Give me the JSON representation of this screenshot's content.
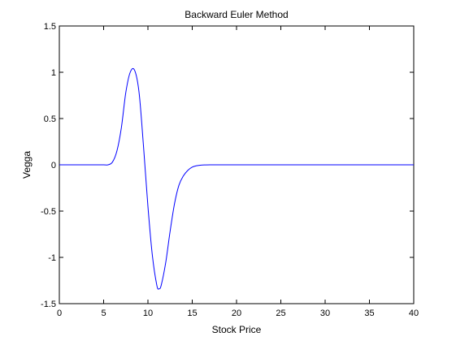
{
  "chart_data": {
    "type": "line",
    "title": "Backward Euler Method",
    "xlabel": "Stock Price",
    "ylabel": "Vegga",
    "xlim": [
      0,
      40
    ],
    "ylim": [
      -1.5,
      1.5
    ],
    "xticks": [
      0,
      5,
      10,
      15,
      20,
      25,
      30,
      35,
      40
    ],
    "yticks": [
      -1.5,
      -1,
      -0.5,
      0,
      0.5,
      1,
      1.5
    ],
    "xtick_labels": [
      "0",
      "5",
      "10",
      "15",
      "20",
      "25",
      "30",
      "35",
      "40"
    ],
    "ytick_labels": [
      "-1.5",
      "-1",
      "-0.5",
      "0",
      "0.5",
      "1",
      "1.5"
    ],
    "grid": false,
    "legend": "none",
    "series": [
      {
        "color": "#0000ff",
        "x": [
          0,
          1,
          2,
          3,
          4,
          5,
          5.5,
          6,
          6.5,
          7,
          7.5,
          8,
          8.5,
          9,
          9.5,
          10,
          10.5,
          11,
          11.25,
          11.5,
          12,
          12.5,
          13,
          13.5,
          14,
          14.5,
          15,
          15.5,
          16,
          16.5,
          17,
          18,
          20,
          25,
          30,
          35,
          40
        ],
        "y": [
          0,
          0,
          0,
          0,
          0,
          0,
          0,
          0.03,
          0.15,
          0.4,
          0.78,
          1.0,
          1.02,
          0.78,
          0.2,
          -0.45,
          -0.98,
          -1.3,
          -1.34,
          -1.3,
          -1.06,
          -0.72,
          -0.42,
          -0.22,
          -0.12,
          -0.06,
          -0.025,
          -0.01,
          -0.003,
          -0.001,
          0,
          0,
          0,
          0,
          0,
          0,
          0
        ]
      }
    ]
  }
}
